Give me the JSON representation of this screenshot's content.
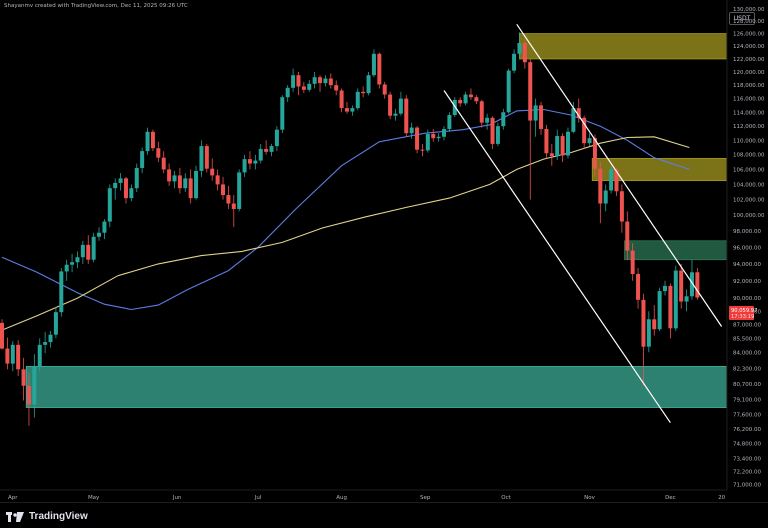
{
  "header": {
    "attribution": "Shayanmv created with TradingView.com, Dec 11, 2025 09:26 UTC",
    "currency": "USDT"
  },
  "footer": {
    "brand": "TradingView"
  },
  "colors": {
    "background": "#000000",
    "up": "#26a69a",
    "down": "#ef5350",
    "ma_fast": "#5b7ee5",
    "ma_slow": "#e2d38b",
    "channel": "#ffffff",
    "supply_zone": "#a59a21",
    "fvg_zone": "#2e7d5b",
    "demand_zone": "#3fb8a0",
    "price_tag": "#ef3b3b"
  },
  "chart_data": {
    "type": "candlestick",
    "title": "",
    "x_axis": {
      "labels": [
        "Apr",
        "May",
        "Jun",
        "Jul",
        "Aug",
        "Sep",
        "Oct",
        "Nov",
        "Dec",
        "20"
      ],
      "range": [
        "2025-03-28",
        "2025-12-22"
      ]
    },
    "y_axis": {
      "ticks": [
        "130,000.00",
        "128,000.00",
        "126,000.00",
        "124,000.00",
        "122,000.00",
        "120,000.00",
        "118,000.00",
        "116,000.00",
        "114,000.00",
        "112,000.00",
        "110,000.00",
        "108,000.00",
        "106,000.00",
        "104,000.00",
        "102,000.00",
        "100,000.00",
        "98,000.00",
        "96,000.00",
        "94,000.00",
        "92,000.00",
        "90,000.00",
        "88,500.00",
        "87,000.00",
        "85,500.00",
        "84,000.00",
        "82,300.00",
        "80,700.00",
        "79,100.00",
        "77,600.00",
        "76,200.00",
        "74,800.00",
        "73,400.00",
        "72,200.00",
        "71,000.00"
      ],
      "scale": "log",
      "range": [
        70500,
        131500
      ]
    },
    "last_price": {
      "value": "90,059.97",
      "countdown": "17:33:19"
    },
    "moving_averages": [
      {
        "kind": "fast",
        "points": [
          [
            "2025-03-28",
            94800
          ],
          [
            "2025-04-10",
            93000
          ],
          [
            "2025-04-25",
            90600
          ],
          [
            "2025-05-05",
            89300
          ],
          [
            "2025-05-15",
            88700
          ],
          [
            "2025-05-25",
            89200
          ],
          [
            "2025-06-05",
            91000
          ],
          [
            "2025-06-20",
            93200
          ],
          [
            "2025-07-01",
            96000
          ],
          [
            "2025-07-15",
            100800
          ],
          [
            "2025-08-01",
            106500
          ],
          [
            "2025-08-15",
            109800
          ],
          [
            "2025-09-01",
            111000
          ],
          [
            "2025-09-15",
            111500
          ],
          [
            "2025-09-25",
            112200
          ],
          [
            "2025-10-05",
            114200
          ],
          [
            "2025-10-15",
            114400
          ],
          [
            "2025-10-25",
            113600
          ],
          [
            "2025-11-05",
            112000
          ],
          [
            "2025-11-15",
            110000
          ],
          [
            "2025-11-25",
            107600
          ],
          [
            "2025-12-08",
            106000
          ]
        ]
      },
      {
        "kind": "slow",
        "points": [
          [
            "2025-03-28",
            86400
          ],
          [
            "2025-04-10",
            88000
          ],
          [
            "2025-04-25",
            90000
          ],
          [
            "2025-05-10",
            92600
          ],
          [
            "2025-05-25",
            94000
          ],
          [
            "2025-06-10",
            95000
          ],
          [
            "2025-06-25",
            95500
          ],
          [
            "2025-07-10",
            96600
          ],
          [
            "2025-07-25",
            98400
          ],
          [
            "2025-08-10",
            99800
          ],
          [
            "2025-08-25",
            101000
          ],
          [
            "2025-09-10",
            102200
          ],
          [
            "2025-09-25",
            104000
          ],
          [
            "2025-10-05",
            106000
          ],
          [
            "2025-10-15",
            107400
          ],
          [
            "2025-10-25",
            108300
          ],
          [
            "2025-11-05",
            109600
          ],
          [
            "2025-11-15",
            110400
          ],
          [
            "2025-11-25",
            110500
          ],
          [
            "2025-12-08",
            109000
          ]
        ]
      }
    ],
    "zones": [
      {
        "kind": "supply",
        "x": [
          "2025-10-06",
          "2025-12-22"
        ],
        "y": [
          122000,
          126000
        ]
      },
      {
        "kind": "supply",
        "x": [
          "2025-11-02",
          "2025-12-22"
        ],
        "y": [
          104500,
          107500
        ]
      },
      {
        "kind": "fvg",
        "x": [
          "2025-11-14",
          "2025-12-22"
        ],
        "y": [
          94500,
          96800
        ]
      },
      {
        "kind": "demand",
        "x": [
          "2025-04-06",
          "2025-12-22"
        ],
        "y": [
          78300,
          82500
        ]
      }
    ],
    "channel_lines": [
      {
        "from": [
          "2025-09-08",
          117200
        ],
        "to": [
          "2025-12-01",
          76800
        ]
      },
      {
        "from": [
          "2025-10-05",
          127500
        ],
        "to": [
          "2025-12-20",
          86800
        ]
      }
    ],
    "candles": [
      [
        "2025-03-28",
        87200,
        87600,
        84300,
        84400
      ],
      [
        "2025-03-30",
        84400,
        85600,
        82200,
        82800
      ],
      [
        "2025-04-01",
        82800,
        85200,
        82000,
        84800
      ],
      [
        "2025-04-03",
        84800,
        85300,
        81500,
        82200
      ],
      [
        "2025-04-05",
        82200,
        83400,
        79000,
        80500
      ],
      [
        "2025-04-07",
        80500,
        81800,
        76500,
        78600
      ],
      [
        "2025-04-09",
        78600,
        83800,
        77300,
        82500
      ],
      [
        "2025-04-11",
        82500,
        85500,
        82000,
        84800
      ],
      [
        "2025-04-13",
        84800,
        86200,
        83900,
        85100
      ],
      [
        "2025-04-15",
        85100,
        86300,
        84500,
        85900
      ],
      [
        "2025-04-17",
        85900,
        89000,
        85500,
        88400
      ],
      [
        "2025-04-19",
        88400,
        93500,
        87900,
        93100
      ],
      [
        "2025-04-21",
        93100,
        94500,
        92000,
        93900
      ],
      [
        "2025-04-23",
        93900,
        95200,
        93000,
        94200
      ],
      [
        "2025-04-25",
        94200,
        95500,
        93500,
        94800
      ],
      [
        "2025-04-27",
        94800,
        96800,
        94000,
        96300
      ],
      [
        "2025-04-29",
        96300,
        97500,
        94000,
        94500
      ],
      [
        "2025-05-01",
        94500,
        97800,
        94200,
        97300
      ],
      [
        "2025-05-03",
        97300,
        98500,
        96800,
        97800
      ],
      [
        "2025-05-05",
        97800,
        99500,
        97000,
        99200
      ],
      [
        "2025-05-07",
        99200,
        104000,
        98500,
        103500
      ],
      [
        "2025-05-09",
        103500,
        104800,
        102000,
        104200
      ],
      [
        "2025-05-11",
        104200,
        105500,
        103200,
        104800
      ],
      [
        "2025-05-13",
        104800,
        105000,
        101500,
        102200
      ],
      [
        "2025-05-15",
        102200,
        104000,
        101800,
        103500
      ],
      [
        "2025-05-17",
        103500,
        106800,
        103000,
        106200
      ],
      [
        "2025-05-19",
        106200,
        109000,
        105500,
        108500
      ],
      [
        "2025-05-21",
        108500,
        111800,
        108000,
        111200
      ],
      [
        "2025-05-23",
        111200,
        111500,
        108500,
        108900
      ],
      [
        "2025-05-25",
        108900,
        109800,
        107000,
        107600
      ],
      [
        "2025-05-27",
        107600,
        108500,
        105500,
        106000
      ],
      [
        "2025-05-29",
        106000,
        106800,
        103800,
        104400
      ],
      [
        "2025-05-31",
        104400,
        105800,
        103500,
        105200
      ],
      [
        "2025-06-02",
        105200,
        106200,
        102800,
        103500
      ],
      [
        "2025-06-04",
        103500,
        105500,
        103000,
        104800
      ],
      [
        "2025-06-06",
        104800,
        106000,
        101500,
        102200
      ],
      [
        "2025-06-08",
        102200,
        106500,
        102000,
        105800
      ],
      [
        "2025-06-10",
        105800,
        110000,
        105000,
        109200
      ],
      [
        "2025-06-12",
        109200,
        109500,
        105600,
        106100
      ],
      [
        "2025-06-14",
        106100,
        107500,
        104500,
        105200
      ],
      [
        "2025-06-16",
        105200,
        106000,
        103200,
        104000
      ],
      [
        "2025-06-18",
        104000,
        105000,
        102000,
        102600
      ],
      [
        "2025-06-20",
        102600,
        103800,
        100800,
        101500
      ],
      [
        "2025-06-22",
        101500,
        102600,
        98500,
        100800
      ],
      [
        "2025-06-24",
        100800,
        106000,
        100500,
        105600
      ],
      [
        "2025-06-26",
        105600,
        108000,
        105000,
        107400
      ],
      [
        "2025-06-28",
        107400,
        108500,
        106000,
        106800
      ],
      [
        "2025-06-30",
        106800,
        108000,
        106000,
        107200
      ],
      [
        "2025-07-02",
        107200,
        109500,
        106800,
        108800
      ],
      [
        "2025-07-04",
        108800,
        110000,
        108000,
        108400
      ],
      [
        "2025-07-06",
        108400,
        109500,
        107800,
        109200
      ],
      [
        "2025-07-08",
        109200,
        112000,
        108500,
        111500
      ],
      [
        "2025-07-10",
        111500,
        116500,
        111000,
        116200
      ],
      [
        "2025-07-12",
        116200,
        118000,
        115500,
        117600
      ],
      [
        "2025-07-14",
        117600,
        120500,
        117000,
        119500
      ],
      [
        "2025-07-16",
        119500,
        120000,
        116500,
        117800
      ],
      [
        "2025-07-18",
        117800,
        118500,
        116800,
        117300
      ],
      [
        "2025-07-20",
        117300,
        118800,
        117000,
        118200
      ],
      [
        "2025-07-22",
        118200,
        120000,
        117500,
        119200
      ],
      [
        "2025-07-24",
        119200,
        119500,
        117000,
        118300
      ],
      [
        "2025-07-26",
        118300,
        119500,
        117800,
        119000
      ],
      [
        "2025-07-28",
        119000,
        119800,
        117500,
        118000
      ],
      [
        "2025-07-30",
        118000,
        118700,
        116500,
        117200
      ],
      [
        "2025-08-01",
        117200,
        117500,
        114000,
        114600
      ],
      [
        "2025-08-03",
        114600,
        115500,
        113800,
        114100
      ],
      [
        "2025-08-05",
        114100,
        115000,
        113500,
        114600
      ],
      [
        "2025-08-07",
        114600,
        117500,
        114300,
        117000
      ],
      [
        "2025-08-09",
        117000,
        117800,
        116200,
        116800
      ],
      [
        "2025-08-11",
        116800,
        120000,
        116500,
        119500
      ],
      [
        "2025-08-13",
        119500,
        123500,
        119200,
        122800
      ],
      [
        "2025-08-15",
        122800,
        123000,
        117500,
        118100
      ],
      [
        "2025-08-17",
        118100,
        118500,
        116000,
        116600
      ],
      [
        "2025-08-19",
        116600,
        117000,
        113000,
        113500
      ],
      [
        "2025-08-21",
        113500,
        114500,
        112800,
        113800
      ],
      [
        "2025-08-23",
        113800,
        117000,
        113500,
        116000
      ],
      [
        "2025-08-25",
        116000,
        116500,
        110500,
        111000
      ],
      [
        "2025-08-27",
        111000,
        112500,
        110200,
        111800
      ],
      [
        "2025-08-29",
        111800,
        112000,
        108200,
        108700
      ],
      [
        "2025-08-31",
        108700,
        109500,
        107800,
        108600
      ],
      [
        "2025-09-02",
        108600,
        111500,
        108300,
        110900
      ],
      [
        "2025-09-04",
        110900,
        111600,
        109800,
        110300
      ],
      [
        "2025-09-06",
        110300,
        111000,
        109800,
        110500
      ],
      [
        "2025-09-08",
        110500,
        112000,
        110000,
        111600
      ],
      [
        "2025-09-10",
        111600,
        114000,
        111200,
        113600
      ],
      [
        "2025-09-12",
        113600,
        116200,
        113300,
        115800
      ],
      [
        "2025-09-14",
        115800,
        116200,
        114800,
        115300
      ],
      [
        "2025-09-16",
        115300,
        117000,
        115000,
        116600
      ],
      [
        "2025-09-18",
        116600,
        117500,
        115800,
        116200
      ],
      [
        "2025-09-20",
        116200,
        116500,
        115200,
        115600
      ],
      [
        "2025-09-22",
        115600,
        115800,
        111800,
        112500
      ],
      [
        "2025-09-24",
        112500,
        113800,
        111500,
        113200
      ],
      [
        "2025-09-26",
        113200,
        113400,
        108800,
        109500
      ],
      [
        "2025-09-28",
        109500,
        112500,
        109200,
        112000
      ],
      [
        "2025-09-30",
        112000,
        114500,
        111500,
        114000
      ],
      [
        "2025-10-02",
        114000,
        120500,
        113800,
        120200
      ],
      [
        "2025-10-04",
        120200,
        123500,
        119800,
        122800
      ],
      [
        "2025-10-06",
        122800,
        126200,
        122000,
        124500
      ],
      [
        "2025-10-08",
        124500,
        124800,
        120500,
        121500
      ],
      [
        "2025-10-10",
        121500,
        122000,
        102000,
        112800
      ],
      [
        "2025-10-12",
        112800,
        116000,
        110500,
        115000
      ],
      [
        "2025-10-14",
        115000,
        115500,
        110800,
        111600
      ],
      [
        "2025-10-16",
        111600,
        112200,
        107500,
        108200
      ],
      [
        "2025-10-18",
        108200,
        109500,
        106500,
        107800
      ],
      [
        "2025-10-20",
        107800,
        111500,
        107300,
        110600
      ],
      [
        "2025-10-22",
        110600,
        111000,
        107000,
        107900
      ],
      [
        "2025-10-24",
        107900,
        111800,
        107500,
        111200
      ],
      [
        "2025-10-26",
        111200,
        115500,
        111000,
        114600
      ],
      [
        "2025-10-28",
        114600,
        116000,
        112500,
        113200
      ],
      [
        "2025-10-30",
        113200,
        113500,
        108800,
        109600
      ],
      [
        "2025-11-01",
        109600,
        111000,
        109200,
        110300
      ],
      [
        "2025-11-03",
        110300,
        110800,
        105000,
        106100
      ],
      [
        "2025-11-05",
        106100,
        107000,
        99000,
        101500
      ],
      [
        "2025-11-07",
        101500,
        104000,
        100500,
        103200
      ],
      [
        "2025-11-09",
        103200,
        106500,
        102800,
        106000
      ],
      [
        "2025-11-11",
        106000,
        106200,
        102500,
        103100
      ],
      [
        "2025-11-13",
        103100,
        104000,
        97800,
        99200
      ],
      [
        "2025-11-15",
        99200,
        100500,
        94500,
        95600
      ],
      [
        "2025-11-17",
        95600,
        96500,
        92000,
        92800
      ],
      [
        "2025-11-19",
        92800,
        93500,
        88800,
        89800
      ],
      [
        "2025-11-21",
        89800,
        90500,
        80500,
        84600
      ],
      [
        "2025-11-23",
        84600,
        88500,
        84000,
        87600
      ],
      [
        "2025-11-25",
        87600,
        89200,
        85800,
        86500
      ],
      [
        "2025-11-27",
        86500,
        91200,
        86300,
        90800
      ],
      [
        "2025-11-29",
        90800,
        92000,
        90300,
        91400
      ],
      [
        "2025-12-01",
        91400,
        91700,
        85500,
        86600
      ],
      [
        "2025-12-03",
        86600,
        93800,
        86300,
        93200
      ],
      [
        "2025-12-05",
        93200,
        94000,
        88800,
        89600
      ],
      [
        "2025-12-07",
        89600,
        91000,
        88500,
        90200
      ],
      [
        "2025-12-09",
        90200,
        94500,
        89800,
        93000
      ],
      [
        "2025-12-11",
        93000,
        93500,
        89800,
        90060
      ]
    ]
  }
}
